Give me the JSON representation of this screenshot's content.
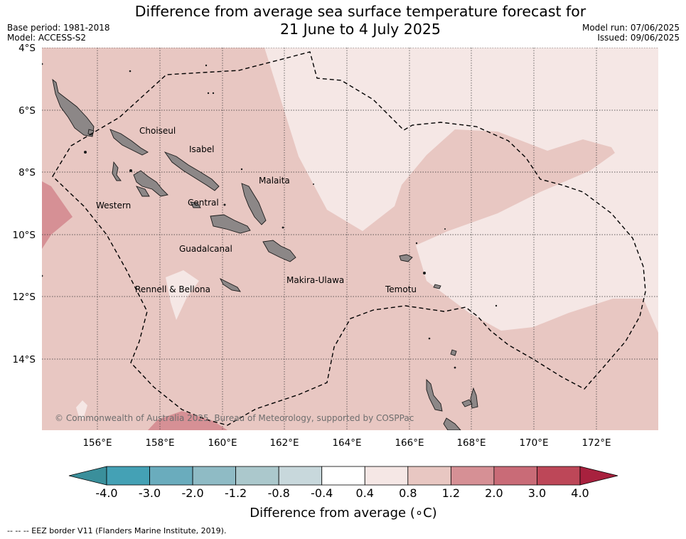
{
  "title_line1": "Difference from average sea surface temperature forecast for",
  "title_line2": "21 June to 4 July 2025",
  "meta": {
    "base_period": "Base period: 1981-2018",
    "model": "Model: ACCESS-S2",
    "model_run": "Model run: 07/06/2025",
    "issued": "Issued: 09/06/2025"
  },
  "map": {
    "lat_labels": [
      "4°S",
      "6°S",
      "8°S",
      "10°S",
      "12°S",
      "14°S"
    ],
    "lon_labels": [
      "156°E",
      "158°E",
      "160°E",
      "162°E",
      "164°E",
      "166°E",
      "168°E",
      "170°E",
      "172°E"
    ],
    "regions": [
      "Choiseul",
      "Isabel",
      "Malaita",
      "Western",
      "Central",
      "Guadalcanal",
      "Makira-Ulawa",
      "Rennell & Bellona",
      "Temotu"
    ],
    "copyright": "© Commonwealth of Australia 2025, Bureau of Meteorology, supported by COSPPac",
    "land_color": "#8c8787",
    "background_anomaly_color": "#e8c7c2"
  },
  "colorbar": {
    "title": "Difference from average (∘C)",
    "ticks": [
      "-4.0",
      "-3.0",
      "-2.0",
      "-1.2",
      "-0.8",
      "-0.4",
      "0.4",
      "0.8",
      "1.2",
      "2.0",
      "3.0",
      "4.0"
    ],
    "colors": [
      "#3a8f9b",
      "#44a1b5",
      "#6aacbd",
      "#8fbbc5",
      "#abc8cc",
      "#c8d8dc",
      "#ffffff",
      "#f5e7e5",
      "#e8c7c2",
      "#d69095",
      "#c96b77",
      "#bd4758",
      "#a8213e"
    ]
  },
  "footnote": "--  --  -- EEZ border V11 (Flanders Marine Institute, 2019)."
}
